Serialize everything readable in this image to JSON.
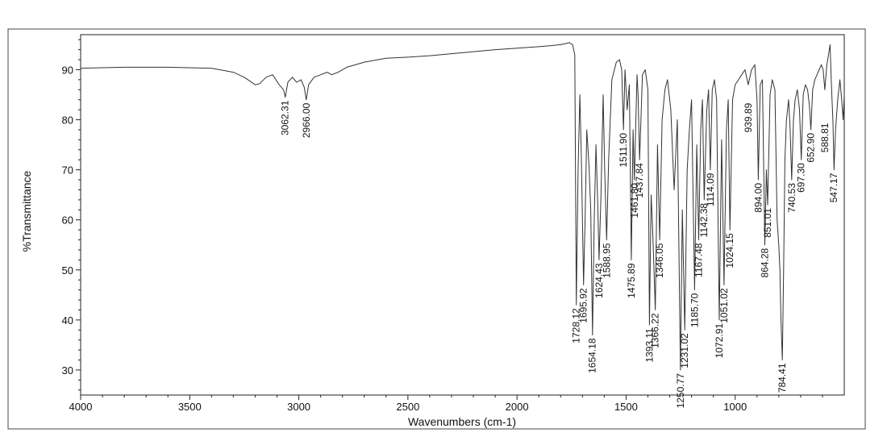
{
  "chart_data": {
    "type": "line",
    "title": "",
    "xlabel": "Wavenumbers (cm-1)",
    "ylabel": "%Transmittance",
    "xlim": [
      4000,
      500
    ],
    "x_reversed": true,
    "ylim": [
      25,
      97
    ],
    "x_ticks": [
      4000,
      3500,
      3000,
      2500,
      2000,
      1500,
      1000
    ],
    "y_ticks": [
      30,
      40,
      50,
      60,
      70,
      80,
      90
    ],
    "grid": false,
    "legend": "none",
    "line_color": "#333333",
    "series": [
      {
        "x": [
          4000,
          3800,
          3600,
          3400,
          3300,
          3250,
          3200,
          3180,
          3150,
          3120,
          3090,
          3070,
          3062,
          3050,
          3030,
          3010,
          2990,
          2975,
          2966,
          2955,
          2930,
          2900,
          2870,
          2850,
          2820,
          2780,
          2700,
          2600,
          2500,
          2400,
          2300,
          2200,
          2100,
          2000,
          1900,
          1850,
          1800,
          1780,
          1760,
          1745,
          1735,
          1728,
          1720,
          1712,
          1705,
          1695,
          1688,
          1680,
          1670,
          1662,
          1654,
          1646,
          1638,
          1630,
          1624,
          1615,
          1605,
          1598,
          1589,
          1580,
          1565,
          1545,
          1530,
          1520,
          1512,
          1505,
          1495,
          1485,
          1476,
          1468,
          1462,
          1450,
          1445,
          1438,
          1425,
          1412,
          1400,
          1393,
          1385,
          1378,
          1366,
          1356,
          1346,
          1335,
          1322,
          1310,
          1295,
          1280,
          1265,
          1251,
          1242,
          1231,
          1220,
          1210,
          1200,
          1192,
          1186,
          1176,
          1167,
          1158,
          1150,
          1142,
          1130,
          1122,
          1114,
          1105,
          1095,
          1085,
          1073,
          1062,
          1051,
          1040,
          1032,
          1024,
          1012,
          1000,
          985,
          970,
          955,
          940,
          925,
          910,
          900,
          894,
          885,
          875,
          864,
          857,
          851,
          840,
          830,
          818,
          808,
          800,
          795,
          790,
          784,
          778,
          772,
          765,
          755,
          748,
          741,
          733,
          725,
          715,
          705,
          697,
          688,
          678,
          668,
          660,
          653,
          645,
          635,
          625,
          615,
          605,
          597,
          589,
          580,
          572,
          565,
          558,
          552,
          547,
          540,
          530,
          520,
          512,
          505,
          500
        ],
        "y": [
          90.3,
          90.5,
          90.5,
          90.3,
          89.5,
          88.5,
          87.0,
          87.2,
          88.5,
          89.0,
          87.0,
          86.0,
          84.5,
          87.5,
          88.5,
          87.5,
          88.0,
          86.5,
          84.0,
          87.0,
          88.5,
          89.0,
          89.5,
          89.0,
          89.5,
          90.5,
          91.5,
          92.3,
          92.5,
          92.8,
          93.2,
          93.6,
          94.0,
          94.3,
          94.6,
          94.8,
          95.0,
          95.2,
          95.4,
          95.0,
          93.0,
          43.0,
          70.0,
          85.0,
          72.0,
          47.0,
          60.0,
          78.0,
          71.0,
          62.0,
          37.0,
          60.0,
          75.0,
          63.0,
          52.0,
          65.0,
          85.0,
          70.0,
          56.0,
          72.0,
          88.0,
          91.5,
          92.0,
          90.0,
          78.0,
          90.0,
          82.0,
          87.0,
          52.0,
          78.0,
          68.0,
          89.0,
          85.0,
          72.0,
          89.0,
          90.0,
          86.0,
          39.0,
          65.0,
          58.0,
          42.0,
          75.0,
          56.0,
          80.0,
          86.0,
          88.0,
          82.0,
          66.0,
          80.0,
          30.0,
          62.0,
          38.0,
          70.0,
          78.0,
          84.0,
          62.0,
          46.0,
          75.0,
          56.0,
          78.0,
          84.0,
          64.0,
          82.0,
          86.0,
          70.0,
          86.0,
          88.0,
          84.0,
          40.0,
          76.0,
          47.0,
          78.0,
          84.0,
          58.0,
          84.0,
          87.0,
          88.0,
          89.0,
          90.0,
          87.0,
          90.0,
          91.0,
          84.0,
          68.0,
          87.0,
          88.0,
          55.0,
          70.0,
          63.0,
          85.0,
          88.0,
          86.0,
          60.0,
          55.0,
          50.0,
          40.0,
          32.0,
          50.0,
          72.0,
          80.0,
          84.0,
          78.0,
          68.0,
          80.0,
          84.0,
          86.0,
          82.0,
          72.0,
          85.0,
          87.0,
          86.0,
          83.0,
          78.0,
          86.0,
          88.0,
          89.0,
          90.0,
          91.0,
          90.0,
          86.0,
          91.0,
          93.0,
          95.0,
          86.0,
          80.0,
          70.0,
          78.0,
          84.0,
          88.0,
          84.0,
          80.0,
          85.0
        ]
      }
    ],
    "peak_labels": [
      {
        "x": 3062.31,
        "y": 84.5,
        "text": "3062.31"
      },
      {
        "x": 2966.0,
        "y": 84.0,
        "text": "2966.00"
      },
      {
        "x": 1728.12,
        "y": 43.0,
        "text": "1728.12"
      },
      {
        "x": 1695.92,
        "y": 47.0,
        "text": "1695.92"
      },
      {
        "x": 1654.18,
        "y": 37.0,
        "text": "1654.18"
      },
      {
        "x": 1624.43,
        "y": 52.0,
        "text": "1624.43"
      },
      {
        "x": 1588.95,
        "y": 56.0,
        "text": "1588.95"
      },
      {
        "x": 1511.9,
        "y": 78.0,
        "text": "1511.90"
      },
      {
        "x": 1475.89,
        "y": 52.0,
        "text": "1475.89"
      },
      {
        "x": 1461.8,
        "y": 68.0,
        "text": "1461.80"
      },
      {
        "x": 1437.84,
        "y": 72.0,
        "text": "1437.84"
      },
      {
        "x": 1393.11,
        "y": 39.0,
        "text": "1393.11"
      },
      {
        "x": 1366.22,
        "y": 42.0,
        "text": "1366.22"
      },
      {
        "x": 1346.05,
        "y": 56.0,
        "text": "1346.05"
      },
      {
        "x": 1250.77,
        "y": 30.0,
        "text": "1250.77"
      },
      {
        "x": 1231.02,
        "y": 38.0,
        "text": "1231.02"
      },
      {
        "x": 1185.7,
        "y": 46.0,
        "text": "1185.70"
      },
      {
        "x": 1167.48,
        "y": 56.0,
        "text": "1167.48"
      },
      {
        "x": 1142.38,
        "y": 64.0,
        "text": "1142.38"
      },
      {
        "x": 1114.09,
        "y": 70.0,
        "text": "1114.09"
      },
      {
        "x": 1072.91,
        "y": 40.0,
        "text": "1072.91"
      },
      {
        "x": 1051.02,
        "y": 47.0,
        "text": "1051.02"
      },
      {
        "x": 1024.15,
        "y": 58.0,
        "text": "1024.15"
      },
      {
        "x": 939.89,
        "y": 84.0,
        "text": "939.89"
      },
      {
        "x": 894.0,
        "y": 68.0,
        "text": "894.00"
      },
      {
        "x": 864.28,
        "y": 55.0,
        "text": "864.28"
      },
      {
        "x": 851.01,
        "y": 63.0,
        "text": "851.01"
      },
      {
        "x": 784.41,
        "y": 32.0,
        "text": "784.41"
      },
      {
        "x": 740.53,
        "y": 68.0,
        "text": "740.53"
      },
      {
        "x": 697.3,
        "y": 72.0,
        "text": "697.30"
      },
      {
        "x": 652.9,
        "y": 78.0,
        "text": "652.90"
      },
      {
        "x": 588.81,
        "y": 80.0,
        "text": "588.81"
      },
      {
        "x": 547.17,
        "y": 70.0,
        "text": "547.17"
      }
    ]
  }
}
